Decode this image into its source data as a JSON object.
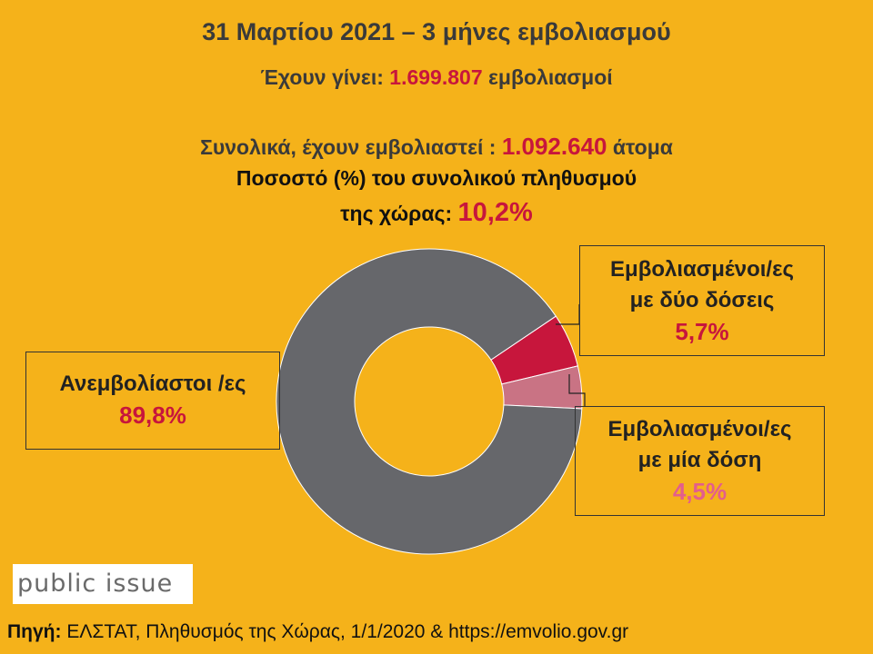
{
  "header": {
    "title": "31 Μαρτίου 2021 – 3 μήνες εμβολιασμού",
    "doses_prefix": "Έχουν γίνει:",
    "doses_value": "1.699.807",
    "doses_suffix": "εμβολιασμοί",
    "people_prefix": "Συνολικά, έχουν εμβολιαστεί :",
    "people_value": "1.092.640",
    "people_suffix": "άτομα",
    "share_line1": "Ποσοστό (%) του συνολικού πληθυσμού",
    "share_line2_prefix": "της χώρας:",
    "share_value": "10,2%"
  },
  "chart_data": {
    "type": "pie",
    "donut": true,
    "title": "",
    "slices": [
      {
        "label_line1": "Εμβολιασμένοι/ες",
        "label_line2": "με δύο δόσεις",
        "value": 5.7,
        "display": "5,7%",
        "color": "#C7163C"
      },
      {
        "label_line1": "Εμβολιασμένοι/ες",
        "label_line2": "με μία δόση",
        "value": 4.5,
        "display": "4,5%",
        "color": "#C97384"
      },
      {
        "label_line1": "Ανεμβολίαστοι /ες",
        "label_line2": "",
        "value": 89.8,
        "display": "89,8%",
        "color": "#66676B"
      }
    ]
  },
  "logo": {
    "text": "public issue"
  },
  "source": {
    "label": "Πηγή:",
    "text": "ΕΛΣΤΑΤ, Πληθυσμός της Χώρας, 1/1/2020 & https://emvolio.gov.gr"
  }
}
